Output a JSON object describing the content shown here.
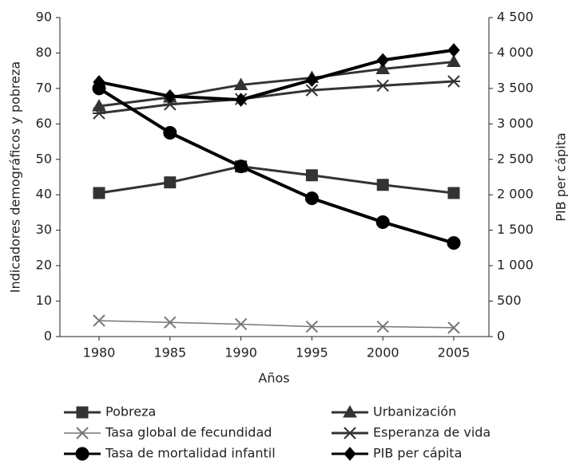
{
  "chart_data": {
    "type": "line",
    "categories": [
      "1980",
      "1985",
      "1990",
      "1995",
      "2000",
      "2005"
    ],
    "xlabel": "Años",
    "ylabel": "Indicadores demográficos y pobreza",
    "y2label": "PIB per cápita",
    "ylim": [
      0,
      90
    ],
    "yticks": [
      0,
      10,
      20,
      30,
      40,
      50,
      60,
      70,
      80,
      90
    ],
    "y2lim": [
      0,
      4500
    ],
    "y2ticks": [
      0,
      500,
      {
        "value": 1000,
        "label": "1 000"
      },
      {
        "value": 1500,
        "label": "1 500"
      },
      {
        "value": 2000,
        "label": "2 000"
      },
      {
        "value": 2500,
        "label": "2 500"
      },
      {
        "value": 3000,
        "label": "3 000"
      },
      {
        "value": 3500,
        "label": "3 500"
      },
      {
        "value": 4000,
        "label": "4 000"
      },
      {
        "value": 4500,
        "label": "4 500"
      }
    ],
    "grid": false,
    "legend": "bottom",
    "series": [
      {
        "name": "Pobreza",
        "color": "#333333",
        "marker": "square",
        "values": [
          40.5,
          43.5,
          48,
          45.5,
          42.8,
          40.5
        ]
      },
      {
        "name": "Urbanización",
        "color": "#333333",
        "marker": "triangle",
        "values": [
          65,
          67.5,
          71,
          73,
          75.5,
          77.5
        ]
      },
      {
        "name": "Tasa global de fecundidad",
        "color": "#777777",
        "marker": "x",
        "values": [
          4.5,
          4,
          3.5,
          2.8,
          2.8,
          2.5
        ]
      },
      {
        "name": "Esperanza de vida",
        "color": "#333333",
        "marker": "asterisk",
        "values": [
          63,
          65.5,
          67,
          69.5,
          70.8,
          72
        ]
      },
      {
        "name": "Tasa de mortalidad infantil",
        "color": "#000000",
        "marker": "circle",
        "values": [
          70,
          57.5,
          48,
          39,
          32.3,
          26.4
        ]
      },
      {
        "name": "PIB per cápita",
        "color": "#000000",
        "marker": "diamond",
        "axis": "y2",
        "values": [
          3590,
          3390,
          3340,
          3620,
          3900,
          4040
        ]
      }
    ]
  }
}
